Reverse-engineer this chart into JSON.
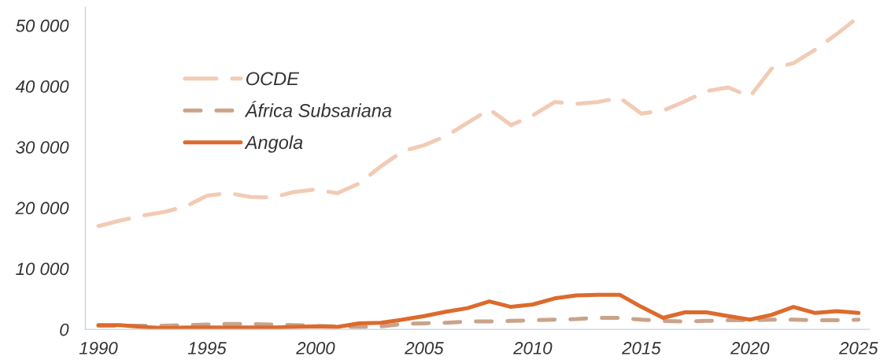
{
  "chart_data": {
    "type": "line",
    "x": [
      1990,
      1991,
      1992,
      1993,
      1994,
      1995,
      1996,
      1997,
      1998,
      1999,
      2000,
      2001,
      2002,
      2003,
      2004,
      2005,
      2006,
      2007,
      2008,
      2009,
      2010,
      2011,
      2012,
      2013,
      2014,
      2015,
      2016,
      2017,
      2018,
      2019,
      2020,
      2021,
      2022,
      2023,
      2024,
      2025
    ],
    "xlim": [
      1989.4,
      2025.5
    ],
    "ylim": [
      0,
      53000
    ],
    "xticks": [
      1990,
      1995,
      2000,
      2005,
      2010,
      2015,
      2020,
      2025
    ],
    "yticks": [
      0,
      {
        "value": 10000,
        "label": "10 000"
      },
      {
        "value": 20000,
        "label": "20 000"
      },
      {
        "value": 30000,
        "label": "30 000"
      },
      {
        "value": 40000,
        "label": "40 000"
      },
      {
        "value": 50000,
        "label": "50 000"
      }
    ],
    "grid": false,
    "legend": "top left",
    "series": [
      {
        "name": "OCDE",
        "color": "#f2cbb5",
        "line_style": "dashed",
        "values": [
          17000,
          17900,
          18700,
          19300,
          20200,
          22000,
          22400,
          21800,
          21700,
          22600,
          23000,
          22400,
          24000,
          26800,
          29300,
          30300,
          31800,
          34000,
          36200,
          33600,
          35200,
          37400,
          37100,
          37400,
          38100,
          35500,
          36000,
          37500,
          39200,
          39800,
          38300,
          42900,
          43800,
          46000,
          48600,
          51400
        ]
      },
      {
        "name": "África Subsariana",
        "color": "#c9a38a",
        "line_style": "dashed",
        "values": [
          600,
          600,
          600,
          600,
          700,
          800,
          900,
          900,
          800,
          700,
          600,
          500,
          400,
          500,
          900,
          1000,
          1100,
          1300,
          1300,
          1400,
          1500,
          1600,
          1700,
          1900,
          1900,
          1600,
          1400,
          1300,
          1400,
          1500,
          1500,
          1600,
          1600,
          1500,
          1500,
          1600
        ]
      },
      {
        "name": "Angola",
        "color": "#dd6a2c",
        "line_style": "solid",
        "values": [
          700,
          700,
          400,
          200,
          300,
          300,
          300,
          300,
          300,
          400,
          500,
          400,
          1000,
          1100,
          1600,
          2200,
          2900,
          3500,
          4600,
          3700,
          4100,
          5100,
          5600,
          5700,
          5700,
          3700,
          1900,
          2800,
          2800,
          2200,
          1600,
          2400,
          3700,
          2700,
          3000,
          2700
        ]
      }
    ]
  }
}
